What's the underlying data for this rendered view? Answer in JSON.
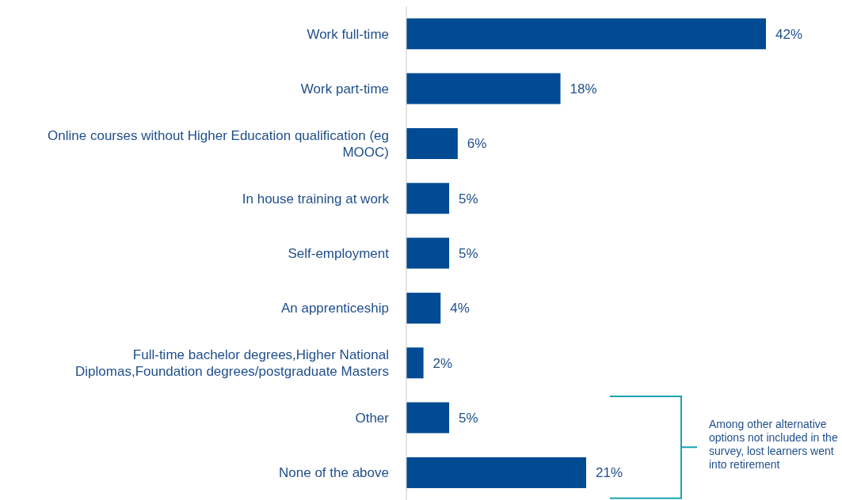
{
  "chart_data": {
    "type": "bar",
    "orientation": "horizontal",
    "categories": [
      "Work full-time",
      "Work part-time ",
      "Online courses without Higher Education qualification (eg MOOC)",
      "In house training at work",
      "Self-employment",
      "An apprenticeship",
      "Full-time bachelor degrees,Higher National Diplomas,Foundation degrees/postgraduate Masters",
      "Other",
      "None of the above"
    ],
    "values": [
      42,
      18,
      6,
      5,
      5,
      4,
      2,
      5,
      21
    ],
    "value_labels": [
      "42%",
      "18%",
      "6%",
      "5%",
      "5%",
      "4%",
      "2%",
      "5%",
      "21%"
    ],
    "color": "#004b93",
    "annotations": [
      "Among other alternative options not included in the survey, lost learners went into retirement"
    ]
  }
}
